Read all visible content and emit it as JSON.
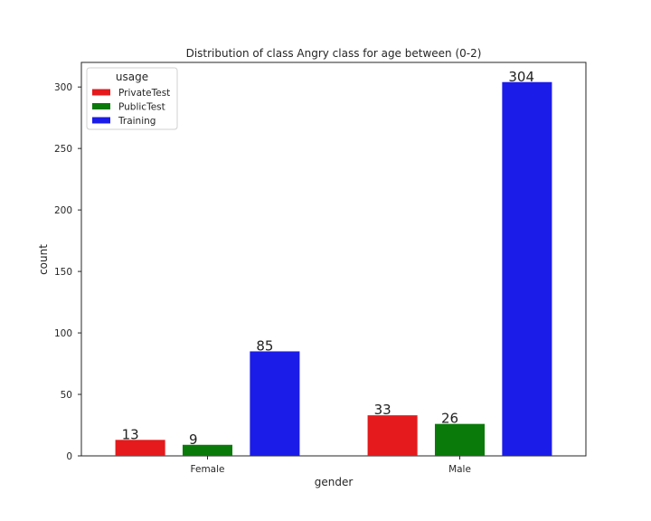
{
  "chart_data": {
    "type": "bar",
    "title": "Distribution of class Angry class for age between (0-2)",
    "xlabel": "gender",
    "ylabel": "count",
    "categories": [
      "Female",
      "Male"
    ],
    "series": [
      {
        "name": "PrivateTest",
        "color": "#e41a1c",
        "values": [
          13,
          33
        ]
      },
      {
        "name": "PublicTest",
        "color": "#0a7a0a",
        "values": [
          9,
          26
        ]
      },
      {
        "name": "Training",
        "color": "#1c1ce8",
        "values": [
          85,
          304
        ]
      }
    ],
    "ylim": [
      0,
      320
    ],
    "yticks": [
      0,
      50,
      100,
      150,
      200,
      250,
      300
    ],
    "legend": {
      "title": "usage",
      "placement": "top-left"
    },
    "grid": false
  }
}
